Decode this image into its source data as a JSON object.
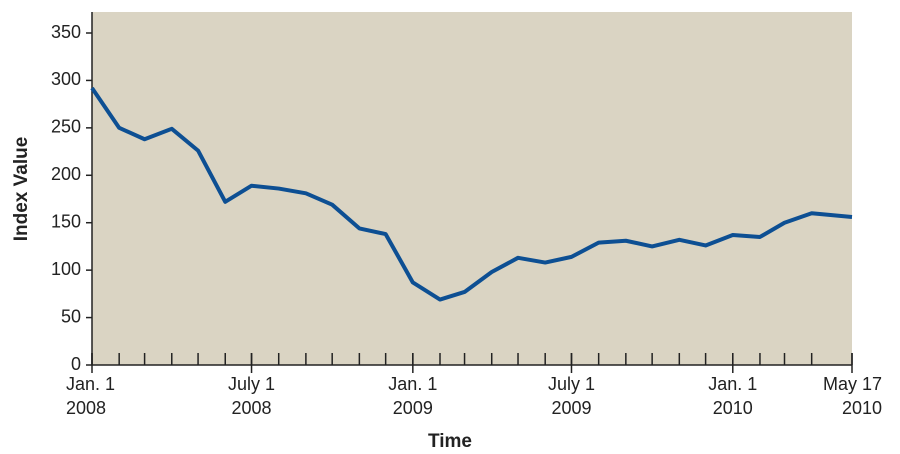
{
  "chart_data": {
    "type": "line",
    "x_label": "Time",
    "y_label": "Index Value",
    "x": [
      "2008-01-01",
      "2008-02-01",
      "2008-03-01",
      "2008-04-01",
      "2008-05-01",
      "2008-06-01",
      "2008-07-01",
      "2008-08-01",
      "2008-09-01",
      "2008-10-01",
      "2008-11-01",
      "2008-12-01",
      "2009-01-01",
      "2009-02-01",
      "2009-03-01",
      "2009-04-01",
      "2009-05-01",
      "2009-06-01",
      "2009-07-01",
      "2009-08-01",
      "2009-09-01",
      "2009-10-01",
      "2009-11-01",
      "2009-12-01",
      "2010-01-01",
      "2010-02-01",
      "2010-03-01",
      "2010-04-01",
      "2010-05-17"
    ],
    "series": [
      {
        "name": "Index Value",
        "color": "#0d4f93",
        "values": [
          292,
          250,
          238,
          249,
          226,
          172,
          189,
          186,
          181,
          169,
          144,
          138,
          87,
          69,
          77,
          98,
          113,
          108,
          114,
          129,
          131,
          125,
          132,
          126,
          137,
          135,
          150,
          160,
          156
        ]
      }
    ],
    "xlim": [
      "2008-01-01",
      "2010-05-17"
    ],
    "xticks": [
      {
        "value": "2008-01-01",
        "label": [
          "Jan. 1",
          "2008"
        ]
      },
      {
        "value": "2008-07-01",
        "label": [
          "July 1",
          "2008"
        ]
      },
      {
        "value": "2009-01-01",
        "label": [
          "Jan. 1",
          "2009"
        ]
      },
      {
        "value": "2009-07-01",
        "label": [
          "July 1",
          "2009"
        ]
      },
      {
        "value": "2010-01-01",
        "label": [
          "Jan. 1",
          "2010"
        ]
      },
      {
        "value": "2010-05-17",
        "label": [
          "May 17",
          "2010"
        ]
      }
    ],
    "ylim": [
      0,
      350
    ],
    "yticks": [
      0,
      50,
      100,
      150,
      200,
      250,
      300,
      350
    ],
    "background": "#dad4c3"
  }
}
